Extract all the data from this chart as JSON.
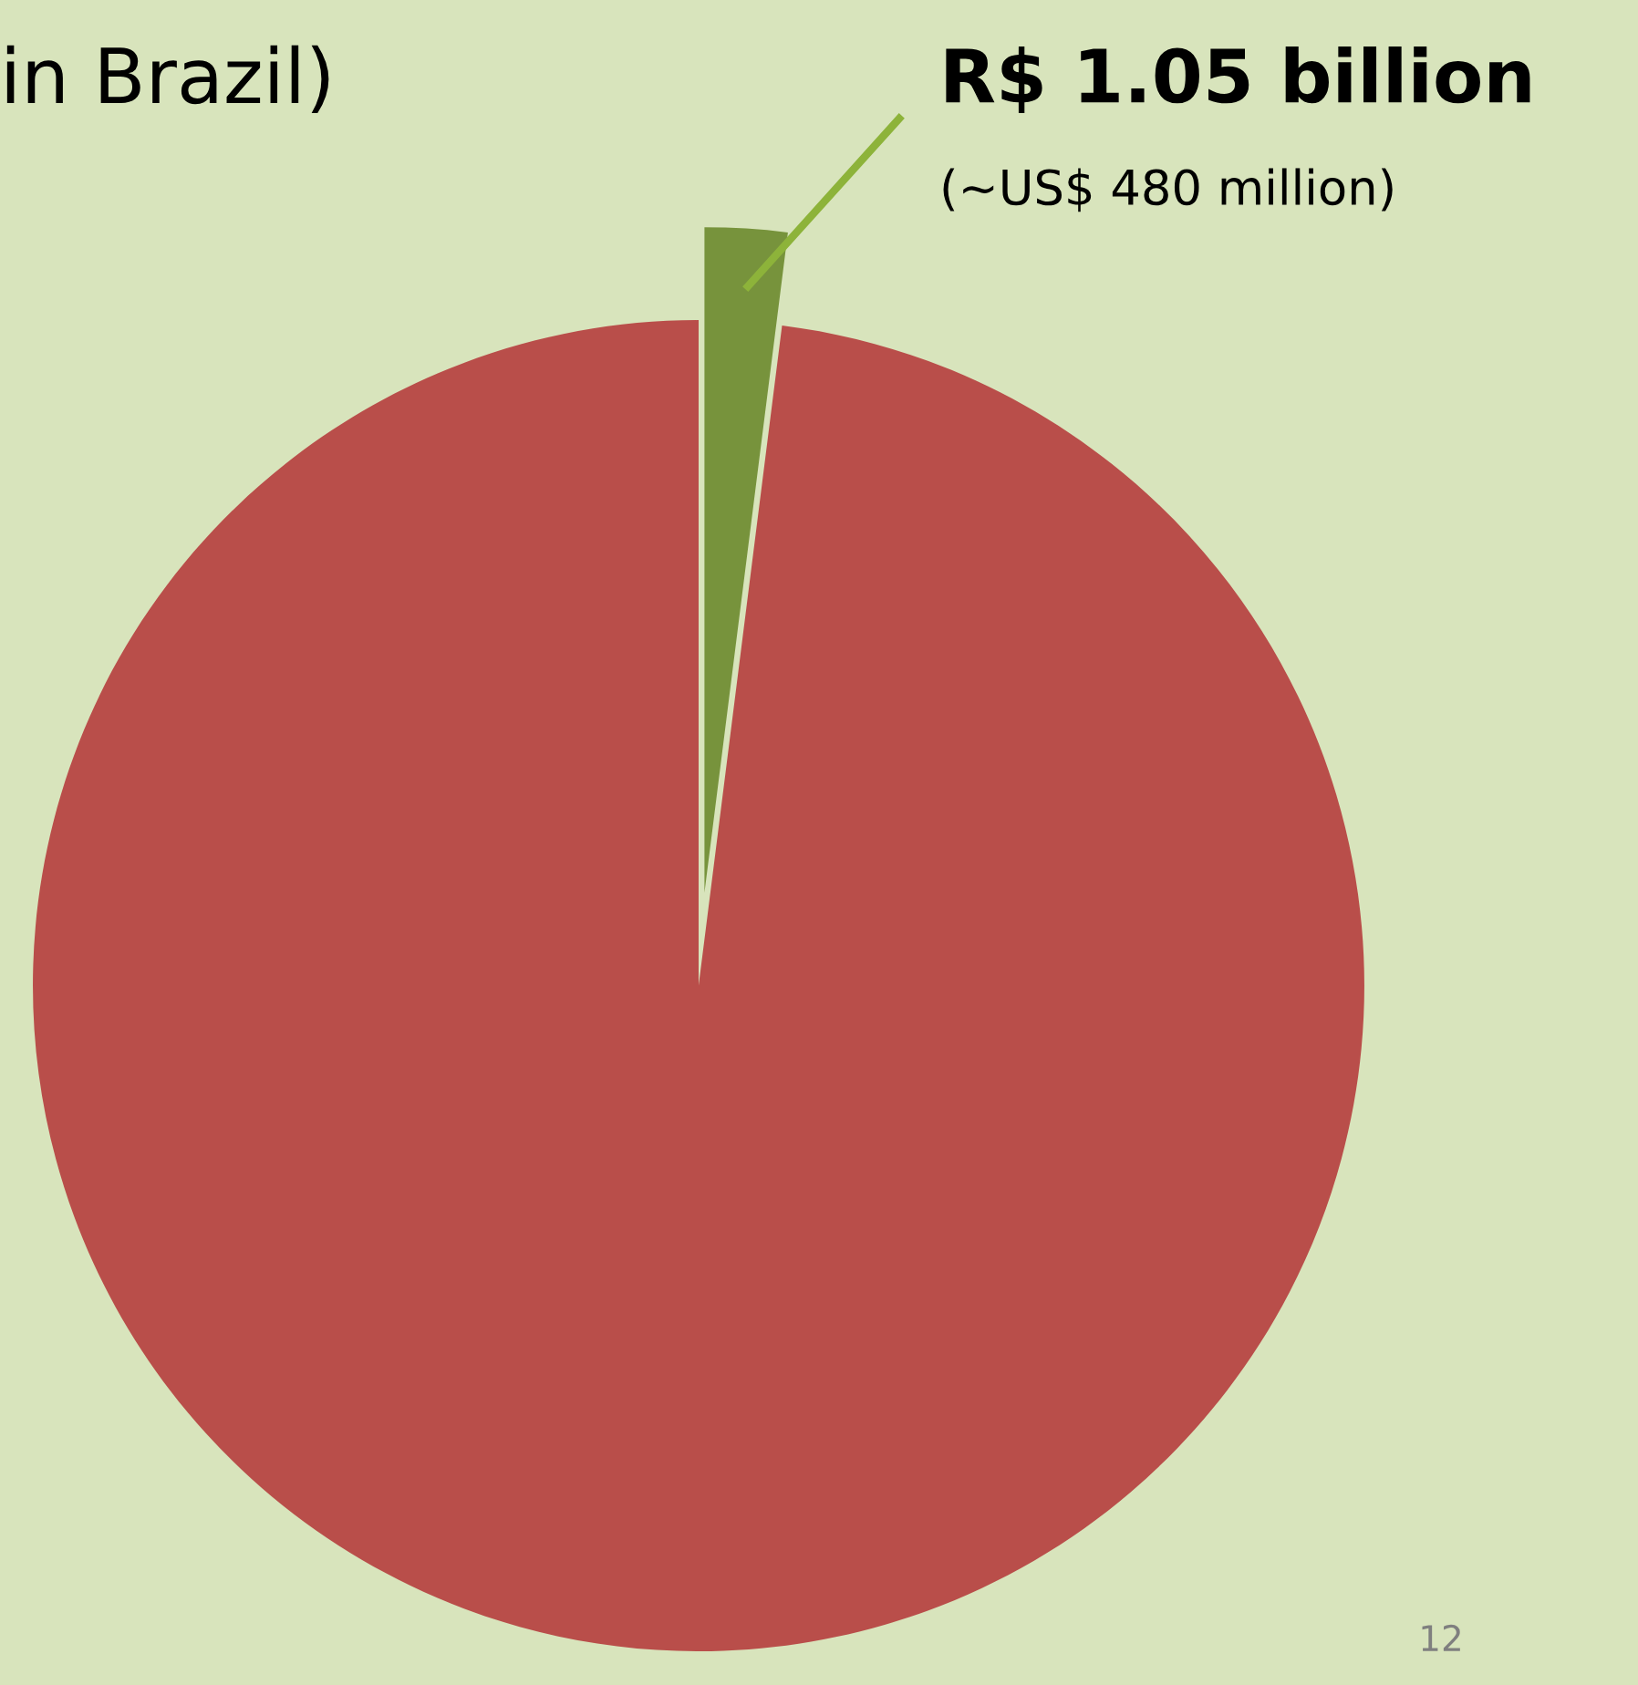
{
  "chart_data": {
    "type": "pie",
    "title": "in Brazil)",
    "categories": [
      null,
      null
    ],
    "values": [
      2,
      98
    ],
    "colors": [
      "#77933c",
      "#b94e4a"
    ],
    "annotations": [
      "R$ 1.05 billion",
      "(~US$ 480 million)",
      "12"
    ]
  }
}
